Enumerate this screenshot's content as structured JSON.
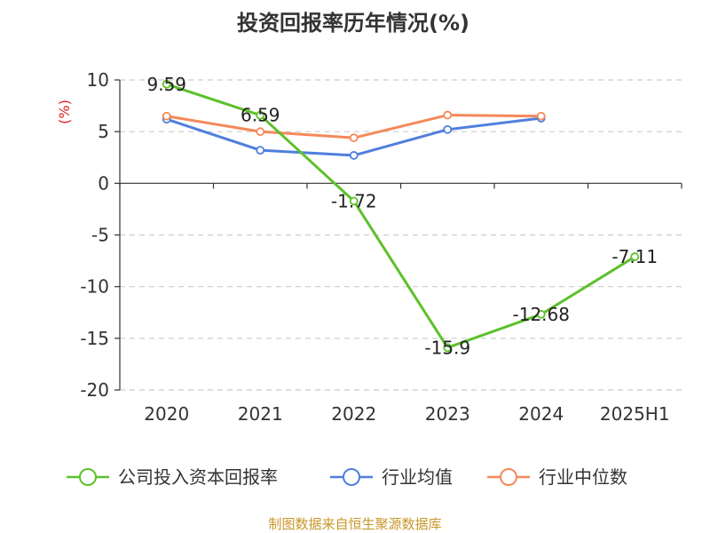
{
  "chart_data": {
    "type": "line",
    "title": "投资回报率历年情况(%)",
    "ylabel": "(%)",
    "categories": [
      "2020",
      "2021",
      "2022",
      "2023",
      "2024",
      "2025H1"
    ],
    "ylim": [
      -20,
      10
    ],
    "yticks": [
      10,
      5,
      0,
      -5,
      -10,
      -15,
      -20
    ],
    "grid": true,
    "legend_position": "bottom",
    "series": [
      {
        "name": "公司投入资本回报率",
        "color": "#5cc12a",
        "values": [
          9.59,
          6.59,
          -1.72,
          -15.9,
          -12.68,
          -7.11
        ],
        "labels": [
          "9.59",
          "6.59",
          "-1.72",
          "-15.9",
          "-12.68",
          "-7.11"
        ]
      },
      {
        "name": "行业均值",
        "color": "#4f7fde",
        "values": [
          6.2,
          3.2,
          2.7,
          5.2,
          6.3,
          null
        ]
      },
      {
        "name": "行业中位数",
        "color": "#f5895a",
        "values": [
          6.5,
          5.0,
          4.4,
          6.6,
          6.5,
          null
        ]
      }
    ],
    "source": "制图数据来自恒生聚源数据库"
  }
}
